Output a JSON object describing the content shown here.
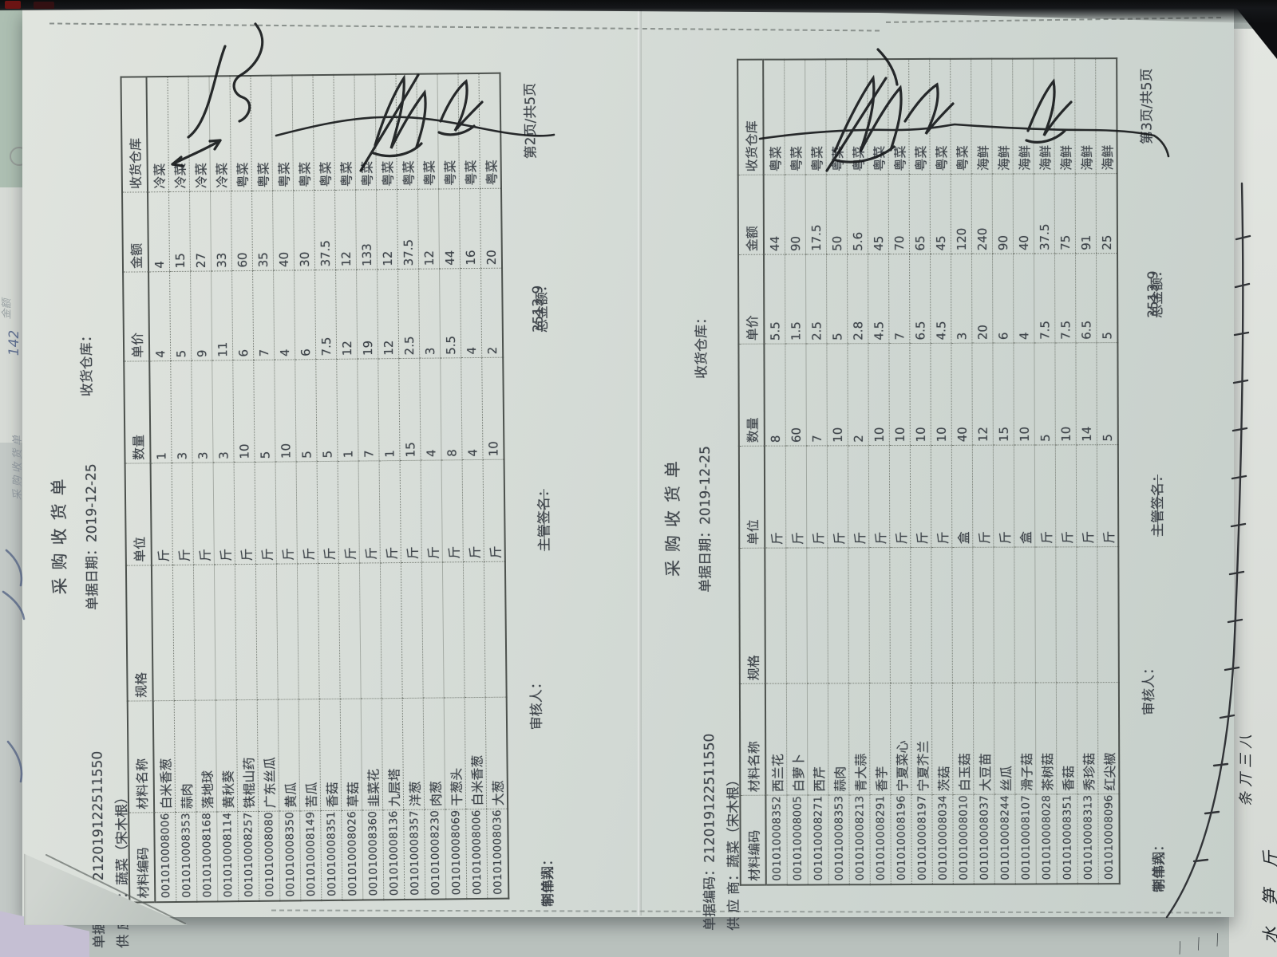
{
  "doc1": {
    "title": "采购收货单",
    "fields": {
      "code_label": "单据编码：",
      "code": "212019122511550",
      "date_label": "单据日期：",
      "date": "2019-12-25",
      "warehouse_label": "收货仓库：",
      "supplier_label": "供 应 商：",
      "supplier": "蔬菜（宋木根）"
    },
    "columns": [
      "材料编码",
      "材料名称",
      "规格",
      "单位",
      "数量",
      "单价",
      "金额",
      "收货仓库"
    ],
    "rows": [
      [
        "001010008006",
        "白米香葱",
        "",
        "斤",
        "1",
        "4",
        "4",
        "冷菜"
      ],
      [
        "001010008353",
        "蒜肉",
        "",
        "斤",
        "3",
        "5",
        "15",
        "冷菜"
      ],
      [
        "001010008168",
        "落地球",
        "",
        "斤",
        "3",
        "9",
        "27",
        "冷菜"
      ],
      [
        "001010008114",
        "黄秋葵",
        "",
        "斤",
        "3",
        "11",
        "33",
        "冷菜"
      ],
      [
        "001010008257",
        "铁棍山药",
        "",
        "斤",
        "10",
        "6",
        "60",
        "粤菜"
      ],
      [
        "001010008080",
        "广东丝瓜",
        "",
        "斤",
        "5",
        "7",
        "35",
        "粤菜"
      ],
      [
        "001010008350",
        "黄瓜",
        "",
        "斤",
        "10",
        "4",
        "40",
        "粤菜"
      ],
      [
        "001010008149",
        "苦瓜",
        "",
        "斤",
        "5",
        "6",
        "30",
        "粤菜"
      ],
      [
        "001010008351",
        "香菇",
        "",
        "斤",
        "5",
        "7.5",
        "37.5",
        "粤菜"
      ],
      [
        "001010008026",
        "草菇",
        "",
        "斤",
        "1",
        "12",
        "12",
        "粤菜"
      ],
      [
        "001010008360",
        "韭菜花",
        "",
        "斤",
        "7",
        "19",
        "133",
        "粤菜"
      ],
      [
        "001010008136",
        "九层塔",
        "",
        "斤",
        "1",
        "12",
        "12",
        "粤菜"
      ],
      [
        "001010008357",
        "洋葱",
        "",
        "斤",
        "15",
        "2.5",
        "37.5",
        "粤菜"
      ],
      [
        "001010008230",
        "肉葱",
        "",
        "斤",
        "4",
        "3",
        "12",
        "粤菜"
      ],
      [
        "001010008069",
        "干葱头",
        "",
        "斤",
        "8",
        "5.5",
        "44",
        "粤菜"
      ],
      [
        "001010008006",
        "白米香葱",
        "",
        "斤",
        "4",
        "4",
        "16",
        "粤菜"
      ],
      [
        "001010008036",
        "大葱",
        "",
        "斤",
        "10",
        "2",
        "20",
        "粤菜"
      ]
    ],
    "footer": {
      "maker_label": "制单人：",
      "maker": "李伟翔",
      "auditor_label": "审核人：",
      "manager_label": "主管签名：",
      "total_label": "总金额：",
      "total": "3513.9",
      "page": "第2页/共5页"
    }
  },
  "doc2": {
    "title": "采购收货单",
    "fields": {
      "code_label": "单据编码：",
      "code": "212019122511550",
      "date_label": "单据日期：",
      "date": "2019-12-25",
      "warehouse_label": "收货仓库：",
      "supplier_label": "供 应 商：",
      "supplier": "蔬菜（宋木根）"
    },
    "columns": [
      "材料编码",
      "材料名称",
      "规格",
      "单位",
      "数量",
      "单价",
      "金额",
      "收货仓库"
    ],
    "rows": [
      [
        "001010008352",
        "西兰花",
        "",
        "斤",
        "8",
        "5.5",
        "44",
        "粤菜"
      ],
      [
        "001010008005",
        "白萝卜",
        "",
        "斤",
        "60",
        "1.5",
        "90",
        "粤菜"
      ],
      [
        "001010008271",
        "西芹",
        "",
        "斤",
        "7",
        "2.5",
        "17.5",
        "粤菜"
      ],
      [
        "001010008353",
        "蒜肉",
        "",
        "斤",
        "10",
        "5",
        "50",
        "粤菜"
      ],
      [
        "001010008213",
        "青大蒜",
        "",
        "斤",
        "2",
        "2.8",
        "5.6",
        "粤菜"
      ],
      [
        "001010008291",
        "香芋",
        "",
        "斤",
        "10",
        "4.5",
        "45",
        "粤菜"
      ],
      [
        "001010008196",
        "宁夏菜心",
        "",
        "斤",
        "10",
        "7",
        "70",
        "粤菜"
      ],
      [
        "001010008197",
        "宁夏芥兰",
        "",
        "斤",
        "10",
        "6.5",
        "65",
        "粤菜"
      ],
      [
        "001010008034",
        "茨菇",
        "",
        "斤",
        "10",
        "4.5",
        "45",
        "粤菜"
      ],
      [
        "001010008010",
        "白玉菇",
        "",
        "盒",
        "40",
        "3",
        "120",
        "粤菜"
      ],
      [
        "001010008037",
        "大豆苗",
        "",
        "斤",
        "12",
        "20",
        "240",
        "海鲜"
      ],
      [
        "001010008244",
        "丝瓜",
        "",
        "斤",
        "15",
        "6",
        "90",
        "海鲜"
      ],
      [
        "001010008107",
        "滑子菇",
        "",
        "盒",
        "10",
        "4",
        "40",
        "海鲜"
      ],
      [
        "001010008028",
        "茶树菇",
        "",
        "斤",
        "5",
        "7.5",
        "37.5",
        "海鲜"
      ],
      [
        "001010008351",
        "香菇",
        "",
        "斤",
        "10",
        "7.5",
        "75",
        "海鲜"
      ],
      [
        "001010008313",
        "秀珍菇",
        "",
        "斤",
        "14",
        "6.5",
        "91",
        "海鲜"
      ],
      [
        "001010008096",
        "红尖椒",
        "",
        "斤",
        "5",
        "5",
        "25",
        "海鲜"
      ]
    ],
    "footer": {
      "maker_label": "制单人：",
      "maker": "李伟翔",
      "auditor_label": "审核人：",
      "manager_label": "主管签名：",
      "total_label": "总金额：",
      "total": "3513.9",
      "page": "第3页/共5页"
    }
  },
  "annotations": {
    "left_number": "142",
    "left_faint_amount": "金额",
    "left_faint_title": "采购收货单",
    "right_tally_note": "条丌三八",
    "right_item_note": "水 笋 斤",
    "right_tick_marks": "｜｜｜"
  },
  "colors": {
    "paper": "#d7ddd8",
    "ink_print": "#3e444a",
    "ink_hand": "#16181b",
    "desk_strip": "#8e9894"
  }
}
